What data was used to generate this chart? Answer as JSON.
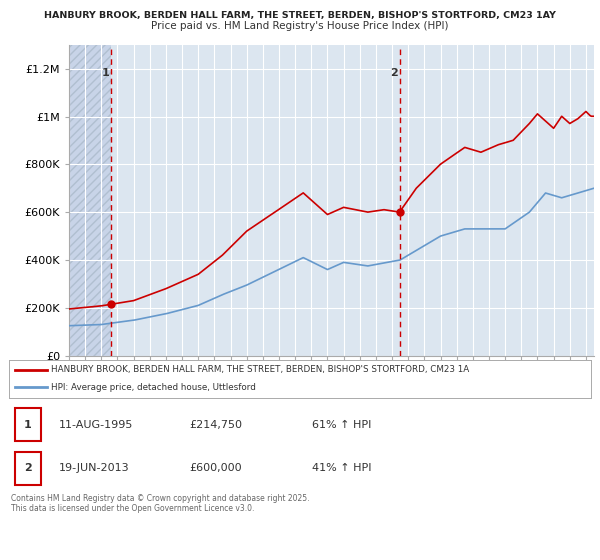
{
  "title_line1": "HANBURY BROOK, BERDEN HALL FARM, THE STREET, BERDEN, BISHOP'S STORTFORD, CM23 1AY",
  "title_line2": "Price paid vs. HM Land Registry's House Price Index (HPI)",
  "legend_line1": "HANBURY BROOK, BERDEN HALL FARM, THE STREET, BERDEN, BISHOP'S STORTFORD, CM23 1A",
  "legend_line2": "HPI: Average price, detached house, Uttlesford",
  "sale1_date": "11-AUG-1995",
  "sale1_price": 214750,
  "sale1_hpi": "61% ↑ HPI",
  "sale2_date": "19-JUN-2013",
  "sale2_price": 600000,
  "sale2_hpi": "41% ↑ HPI",
  "sale1_year": 1995.61,
  "sale2_year": 2013.46,
  "property_color": "#cc0000",
  "hpi_color": "#6699cc",
  "vline_color": "#cc0000",
  "background_color": "#ffffff",
  "plot_bg_color": "#dce6f0",
  "grid_color": "#ffffff",
  "hatch_color": "#c8d4e8",
  "ylim_max": 1300000,
  "xlim_min": 1993.0,
  "xlim_max": 2025.5,
  "footnote": "Contains HM Land Registry data © Crown copyright and database right 2025.\nThis data is licensed under the Open Government Licence v3.0."
}
